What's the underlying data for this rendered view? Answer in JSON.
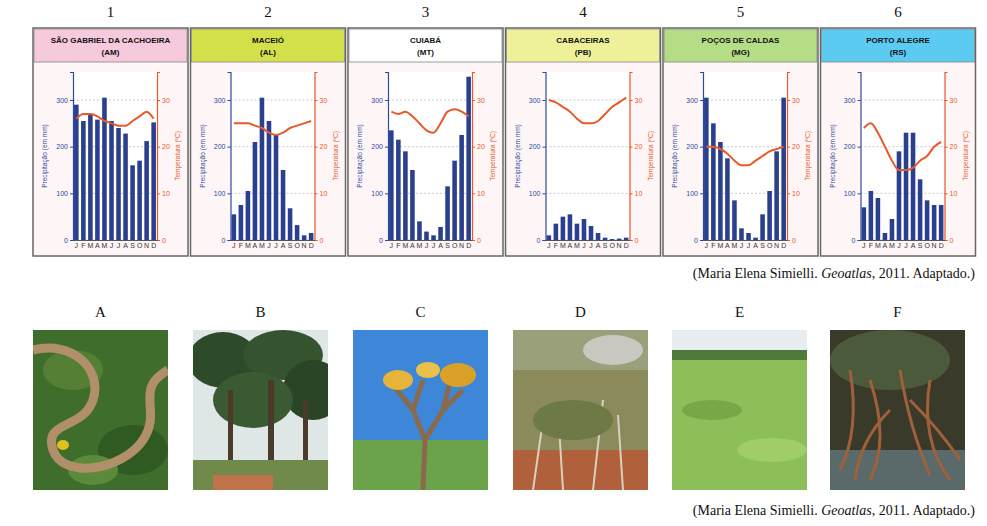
{
  "chart_data": [
    {
      "type": "bar",
      "annotations": [
        "1"
      ],
      "title": "SÃO GABRIEL DA CACHOEIRA",
      "subtitle": "(AM)",
      "categories": [
        "J",
        "F",
        "M",
        "A",
        "M",
        "J",
        "J",
        "A",
        "S",
        "O",
        "N",
        "D"
      ],
      "ylabel": "Precipitação (em mm)",
      "y2label": "Temperatura (ºC)",
      "ylim": [
        0,
        360
      ],
      "yticks": [
        0,
        100,
        200,
        300
      ],
      "y2lim": [
        0,
        36
      ],
      "y2ticks": [
        0,
        10,
        20,
        30
      ],
      "grid": true,
      "series": [
        {
          "type": "bar",
          "color": "#2b3f8f",
          "values": [
            290,
            255,
            268,
            258,
            305,
            255,
            240,
            228,
            160,
            170,
            212,
            252
          ]
        },
        {
          "type": "line",
          "axis": "y2",
          "color": "#e8592b",
          "values": [
            26,
            27,
            27,
            26.5,
            25.5,
            25,
            24.5,
            24.5,
            25.5,
            26.5,
            27.5,
            26
          ]
        }
      ]
    },
    {
      "type": "bar",
      "annotations": [
        "2"
      ],
      "title": "MACEIÓ",
      "subtitle": "(AL)",
      "categories": [
        "J",
        "F",
        "M",
        "A",
        "M",
        "J",
        "J",
        "A",
        "S",
        "O",
        "N",
        "D"
      ],
      "ylabel": "Precipitação (em mm)",
      "y2label": "Temperatura (ºC)",
      "ylim": [
        0,
        360
      ],
      "yticks": [
        0,
        100,
        200,
        300
      ],
      "y2lim": [
        0,
        36
      ],
      "y2ticks": [
        0,
        10,
        20,
        30
      ],
      "grid": true,
      "series": [
        {
          "type": "bar",
          "color": "#2b3f8f",
          "values": [
            55,
            75,
            105,
            210,
            305,
            255,
            225,
            150,
            68,
            32,
            10,
            15
          ]
        },
        {
          "type": "line",
          "axis": "y2",
          "color": "#e8592b",
          "values": [
            25,
            25,
            25,
            24.5,
            24,
            23,
            22.5,
            23,
            24,
            24.5,
            25,
            25.5
          ]
        }
      ]
    },
    {
      "type": "bar",
      "annotations": [
        "3"
      ],
      "title": "CUIABÁ",
      "subtitle": "(MT)",
      "categories": [
        "J",
        "F",
        "M",
        "A",
        "M",
        "J",
        "J",
        "A",
        "S",
        "O",
        "N",
        "D"
      ],
      "ylabel": "Precipitação (em mm)",
      "y2label": "Temperatura (ºC)",
      "ylim": [
        0,
        360
      ],
      "yticks": [
        0,
        100,
        200,
        300
      ],
      "y2lim": [
        0,
        36
      ],
      "y2ticks": [
        0,
        10,
        20,
        30
      ],
      "grid": true,
      "series": [
        {
          "type": "bar",
          "color": "#2b3f8f",
          "values": [
            235,
            215,
            190,
            150,
            40,
            18,
            10,
            28,
            115,
            170,
            225,
            350
          ]
        },
        {
          "type": "line",
          "axis": "y2",
          "color": "#e8592b",
          "values": [
            27.5,
            27,
            27.5,
            26.5,
            25,
            23.5,
            23,
            25,
            27.5,
            28,
            27.5,
            26.5
          ]
        }
      ]
    },
    {
      "type": "bar",
      "annotations": [
        "4"
      ],
      "title": "CABACEIRAS",
      "subtitle": "(PB)",
      "categories": [
        "J",
        "F",
        "M",
        "A",
        "M",
        "J",
        "J",
        "A",
        "S",
        "O",
        "N",
        "D"
      ],
      "ylabel": "Precipitação (em mm)",
      "y2label": "Temperatura (ºC)",
      "ylim": [
        0,
        360
      ],
      "yticks": [
        0,
        100,
        200,
        300
      ],
      "y2lim": [
        0,
        36
      ],
      "y2ticks": [
        0,
        10,
        20,
        30
      ],
      "grid": true,
      "series": [
        {
          "type": "bar",
          "color": "#2b3f8f",
          "values": [
            10,
            35,
            50,
            55,
            35,
            45,
            30,
            15,
            5,
            2,
            3,
            5
          ]
        },
        {
          "type": "line",
          "axis": "y2",
          "color": "#e8592b",
          "values": [
            30,
            29.5,
            28.5,
            27.5,
            26,
            25,
            25,
            25.5,
            27,
            28.5,
            29.5,
            30.5
          ]
        }
      ]
    },
    {
      "type": "bar",
      "annotations": [
        "5"
      ],
      "title": "POÇOS DE CALDAS",
      "subtitle": "(MG)",
      "categories": [
        "J",
        "F",
        "M",
        "A",
        "M",
        "J",
        "J",
        "A",
        "S",
        "O",
        "N",
        "D"
      ],
      "ylabel": "Precipitação (em mm)",
      "y2label": "Temperatura (ºC)",
      "ylim": [
        0,
        360
      ],
      "yticks": [
        0,
        100,
        200,
        300
      ],
      "y2lim": [
        0,
        36
      ],
      "y2ticks": [
        0,
        10,
        20,
        30
      ],
      "grid": true,
      "series": [
        {
          "type": "bar",
          "color": "#2b3f8f",
          "values": [
            305,
            250,
            210,
            175,
            85,
            25,
            15,
            5,
            55,
            105,
            190,
            305
          ]
        },
        {
          "type": "line",
          "axis": "y2",
          "color": "#e8592b",
          "values": [
            20,
            20,
            19.5,
            18.5,
            17,
            16,
            16,
            17,
            18,
            19,
            19.5,
            20
          ]
        }
      ]
    },
    {
      "type": "bar",
      "annotations": [
        "6"
      ],
      "title": "PORTO ALEGRE",
      "subtitle": "(RS)",
      "categories": [
        "J",
        "F",
        "M",
        "A",
        "M",
        "J",
        "J",
        "A",
        "S",
        "O",
        "N",
        "D"
      ],
      "ylabel": "Precipitação (em mm)",
      "y2label": "Temperatura (ºC)",
      "ylim": [
        0,
        360
      ],
      "yticks": [
        0,
        100,
        200,
        300
      ],
      "y2lim": [
        0,
        36
      ],
      "y2ticks": [
        0,
        10,
        20,
        30
      ],
      "grid": true,
      "series": [
        {
          "type": "bar",
          "color": "#2b3f8f",
          "values": [
            70,
            105,
            90,
            15,
            45,
            190,
            230,
            230,
            130,
            85,
            75,
            75
          ]
        },
        {
          "type": "line",
          "axis": "y2",
          "color": "#e8592b",
          "values": [
            24,
            25,
            23,
            20,
            17,
            15,
            15,
            15.5,
            17,
            18,
            20,
            21
          ]
        }
      ]
    }
  ],
  "charts_source": {
    "before": "(Maria Elena Simielli. ",
    "work": "Geoatlas",
    "after": ", 2011. Adaptado.)"
  },
  "photos": {
    "labels": [
      "A",
      "B",
      "C",
      "D",
      "E",
      "F"
    ],
    "source": {
      "before": "(Maria Elena Simielli. ",
      "work": "Geoatlas",
      "after": ", 2011. Adaptado.)"
    }
  }
}
